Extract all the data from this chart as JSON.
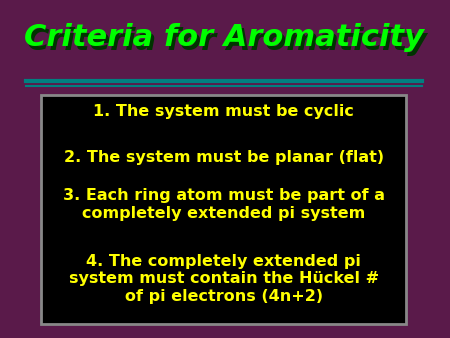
{
  "title": "Criteria for Aromaticity",
  "title_color": "#00ff00",
  "title_shadow_color": "#003300",
  "bg_color": "#5a1a4a",
  "teal_line_color": "#008080",
  "box_bg_color": "#000000",
  "box_border_color": "#888888",
  "text_color": "#ffff00",
  "lines": [
    "1. The system must be cyclic",
    "2. The system must be planar (flat)",
    "3. Each ring atom must be part of a\ncompletely extended pi system",
    "4. The completely extended pi\nsystem must contain the Hückel #\nof pi electrons (4n+2)"
  ],
  "figsize": [
    4.5,
    3.38
  ],
  "dpi": 100
}
